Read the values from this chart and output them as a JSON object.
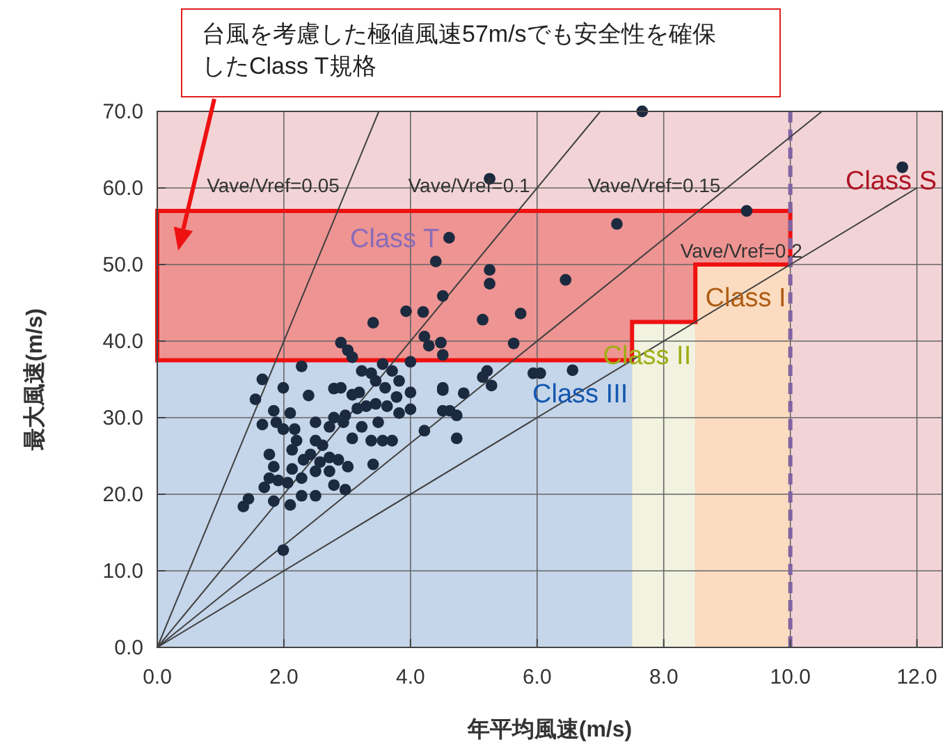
{
  "chart_data": {
    "type": "scatter",
    "xlabel": "年平均風速(m/s)",
    "ylabel": "最大風速(m/s)",
    "xlim": [
      0,
      12.4
    ],
    "ylim": [
      0,
      70
    ],
    "xticks": [
      {
        "value": 0,
        "label": "0.0"
      },
      {
        "value": 2,
        "label": "2.0"
      },
      {
        "value": 4,
        "label": "4.0"
      },
      {
        "value": 6,
        "label": "6.0"
      },
      {
        "value": 8,
        "label": "8.0"
      },
      {
        "value": 10,
        "label": "10.0"
      },
      {
        "value": 12,
        "label": "12.0"
      }
    ],
    "yticks": [
      {
        "value": 0,
        "label": "0.0"
      },
      {
        "value": 10,
        "label": "10.0"
      },
      {
        "value": 20,
        "label": "20.0"
      },
      {
        "value": 30,
        "label": "30.0"
      },
      {
        "value": 40,
        "label": "40.0"
      },
      {
        "value": 50,
        "label": "50.0"
      },
      {
        "value": 60,
        "label": "60.0"
      },
      {
        "value": 70,
        "label": "70.0"
      }
    ],
    "grid": true,
    "series": [
      {
        "type": "area",
        "name": "Class T",
        "color": "#e8473f",
        "x": [
          0,
          10
        ],
        "values": [
          57,
          57
        ]
      },
      {
        "type": "area",
        "name": "Class III",
        "color": "#c5d5ea",
        "x": [
          0,
          7.5
        ],
        "values": [
          37.5,
          37.5
        ]
      },
      {
        "type": "area",
        "name": "Class II",
        "color": "#f1f3e0",
        "x": [
          7.5,
          8.5
        ],
        "values": [
          42.5,
          42.5
        ]
      },
      {
        "type": "area",
        "name": "Class I",
        "color": "#fbdcc0",
        "x": [
          8.5,
          10
        ],
        "values": [
          50,
          50
        ]
      },
      {
        "type": "line",
        "name": "Vave/Vref=0.05",
        "color": "#404040",
        "line_style": "solid",
        "x": [
          0,
          3.5
        ],
        "values": [
          0,
          70
        ]
      },
      {
        "type": "line",
        "name": "Vave/Vref=0.1",
        "color": "#404040",
        "line_style": "solid",
        "x": [
          0,
          7
        ],
        "values": [
          0,
          70
        ]
      },
      {
        "type": "line",
        "name": "Vave/Vref=0.15",
        "color": "#404040",
        "line_style": "solid",
        "x": [
          0,
          10.5
        ],
        "values": [
          0,
          70
        ]
      },
      {
        "type": "line",
        "name": "Vave/Vref=0.2",
        "color": "#404040",
        "line_style": "solid",
        "x": [
          0,
          12
        ],
        "values": [
          0,
          60
        ]
      },
      {
        "marker": "circle",
        "color": "#1c2a3f",
        "x": [
          2.28,
          1.66,
          1.99,
          1.55,
          2.39,
          2.79,
          2.9,
          3.08,
          3.19,
          3.23,
          3.38,
          3.45,
          3.56,
          3.71,
          3.82,
          4.0,
          4.0,
          3.6,
          3.78,
          1.84,
          2.1,
          1.66,
          1.88,
          1.99,
          2.17,
          2.5,
          2.79,
          2.97,
          3.16,
          3.3,
          3.45,
          3.63,
          3.82,
          4.0,
          4.51,
          4.51,
          2.2,
          2.5,
          2.13,
          2.61,
          2.72,
          2.94,
          3.08,
          3.23,
          3.38,
          3.56,
          3.71,
          3.49,
          1.77,
          1.84,
          2.13,
          2.31,
          2.42,
          2.57,
          2.72,
          2.86,
          3.01,
          2.5,
          2.72,
          1.77,
          1.69,
          1.91,
          2.06,
          2.28,
          2.79,
          2.97,
          3.41,
          4.22,
          1.44,
          1.36,
          1.84,
          2.1,
          2.28,
          2.5,
          1.99,
          3.93,
          4.2,
          3.41,
          2.9,
          3.01,
          3.08,
          4.22,
          4.29,
          4.48,
          7.26,
          4.61,
          4.4,
          5.25,
          5.25,
          6.45,
          4.51,
          5.14,
          5.74,
          5.63,
          4.51,
          5.21,
          5.28,
          5.14,
          5.94,
          6.05,
          6.56,
          4.51,
          4.84,
          4.62,
          4.73,
          4.73,
          9.31,
          11.77,
          7.66,
          5.25
        ],
        "values": [
          36.7,
          35.0,
          33.9,
          32.4,
          32.9,
          33.8,
          33.9,
          33.0,
          33.3,
          36.1,
          35.8,
          34.8,
          37.0,
          36.1,
          34.8,
          37.3,
          33.3,
          33.9,
          32.7,
          30.9,
          30.6,
          29.1,
          29.4,
          28.5,
          28.5,
          29.4,
          30.0,
          30.3,
          31.2,
          31.5,
          31.8,
          31.5,
          30.6,
          31.1,
          33.6,
          30.9,
          27.0,
          27.0,
          25.8,
          26.4,
          28.8,
          29.4,
          27.3,
          28.8,
          27.0,
          27.0,
          27.0,
          29.4,
          25.2,
          23.6,
          23.3,
          24.5,
          25.2,
          24.2,
          24.8,
          24.5,
          23.6,
          23.0,
          23.0,
          22.1,
          20.9,
          21.8,
          21.5,
          22.1,
          21.2,
          20.6,
          23.9,
          28.3,
          19.4,
          18.4,
          19.1,
          18.6,
          19.8,
          19.8,
          12.7,
          43.9,
          43.8,
          42.4,
          39.8,
          38.8,
          37.9,
          40.6,
          39.4,
          39.8,
          55.3,
          53.5,
          50.4,
          49.3,
          47.5,
          48.0,
          45.9,
          42.8,
          43.6,
          39.7,
          38.2,
          36.1,
          34.2,
          35.3,
          35.8,
          35.8,
          36.2,
          33.9,
          33.2,
          30.9,
          30.3,
          27.3,
          57.0,
          62.7,
          70.0,
          61.2
        ]
      }
    ],
    "ref_lines": [
      {
        "axis": "x",
        "value": 10,
        "color": "#8064a2",
        "line_style": "dashed"
      }
    ],
    "bands": [
      {
        "axis": "x",
        "from": 0,
        "to": 12.4,
        "label": "Class S",
        "color": "#f2d4d7"
      }
    ],
    "annotations": [
      "台風を考慮した極値風速57m/sでも安全性を確保したClass T規格"
    ]
  }
}
